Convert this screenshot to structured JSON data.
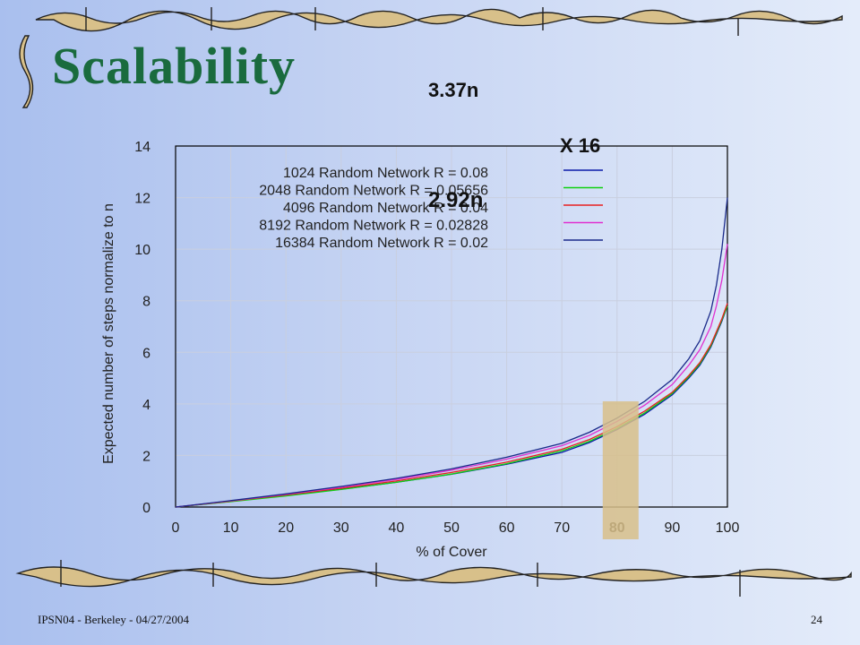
{
  "slide": {
    "title": "Scalability",
    "annotation_top": "3.37n",
    "annotation_x16": "X 16",
    "annotation_mid": "2.92n",
    "footer_left": "IPSN04 - Berkeley - 04/27/2004",
    "footer_right": "24",
    "accent_color": "#1a6b3e",
    "highlight_color": "#d8c08a"
  },
  "chart_data": {
    "type": "line",
    "title": "",
    "xlabel": "% of Cover",
    "ylabel": "Expected number of steps normalize to n",
    "xlim": [
      0,
      100
    ],
    "ylim": [
      0,
      14
    ],
    "xticks": [
      0,
      10,
      20,
      30,
      40,
      50,
      60,
      70,
      80,
      90,
      100
    ],
    "yticks": [
      0,
      2,
      4,
      6,
      8,
      10,
      12,
      14
    ],
    "grid": true,
    "legend_position": "top",
    "highlight_x": 80,
    "x": [
      0,
      10,
      20,
      30,
      40,
      50,
      60,
      70,
      75,
      80,
      85,
      90,
      93,
      95,
      97,
      98,
      99,
      100
    ],
    "series": [
      {
        "name": "1024 Random Network R = 0.08",
        "color": "#0a1aa8",
        "values": [
          0,
          0.22,
          0.45,
          0.69,
          0.96,
          1.27,
          1.66,
          2.12,
          2.5,
          3.0,
          3.6,
          4.35,
          5.0,
          5.5,
          6.2,
          6.7,
          7.2,
          7.8
        ]
      },
      {
        "name": "2048 Random Network R = 0.05656",
        "color": "#10d010",
        "values": [
          0,
          0.21,
          0.43,
          0.68,
          0.96,
          1.28,
          1.68,
          2.18,
          2.55,
          3.05,
          3.65,
          4.4,
          5.05,
          5.55,
          6.25,
          6.75,
          7.25,
          7.8
        ]
      },
      {
        "name": "4096 Random Network R = 0.04",
        "color": "#e82020",
        "values": [
          0,
          0.23,
          0.47,
          0.73,
          1.01,
          1.34,
          1.74,
          2.24,
          2.62,
          3.12,
          3.72,
          4.45,
          5.1,
          5.6,
          6.3,
          6.8,
          7.3,
          7.9
        ]
      },
      {
        "name": "8192 Random Network R = 0.02828",
        "color": "#e030d0",
        "values": [
          0,
          0.24,
          0.49,
          0.77,
          1.07,
          1.43,
          1.86,
          2.38,
          2.78,
          3.32,
          3.95,
          4.75,
          5.5,
          6.1,
          7.0,
          7.8,
          8.8,
          10.2
        ]
      },
      {
        "name": "16384 Random Network R = 0.02",
        "color": "#1a2a8a",
        "values": [
          0,
          0.25,
          0.51,
          0.8,
          1.11,
          1.48,
          1.93,
          2.47,
          2.9,
          3.45,
          4.1,
          4.95,
          5.75,
          6.45,
          7.6,
          8.6,
          10.0,
          12.0
        ]
      }
    ]
  }
}
